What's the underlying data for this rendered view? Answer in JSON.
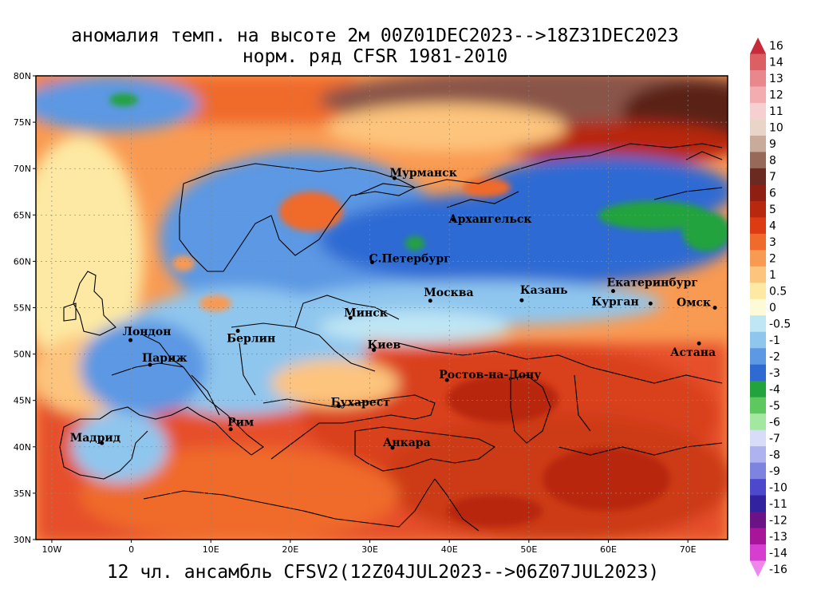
{
  "title_line1": "аномалия темп. на высоте 2м 00Z01DEC2023-->18Z31DEC2023",
  "title_line2": "норм. ряд CFSR 1981-2010",
  "footer": "12 чл. ансамбль CFSV2(12Z04JUL2023-->06Z07JUL2023)",
  "lat_ticks": [
    {
      "label": "80N",
      "v": 80
    },
    {
      "label": "75N",
      "v": 75
    },
    {
      "label": "70N",
      "v": 70
    },
    {
      "label": "65N",
      "v": 65
    },
    {
      "label": "60N",
      "v": 60
    },
    {
      "label": "55N",
      "v": 55
    },
    {
      "label": "50N",
      "v": 50
    },
    {
      "label": "45N",
      "v": 45
    },
    {
      "label": "40N",
      "v": 40
    },
    {
      "label": "35N",
      "v": 35
    },
    {
      "label": "30N",
      "v": 30
    }
  ],
  "lon_ticks": [
    {
      "label": "10W",
      "v": -10
    },
    {
      "label": "0",
      "v": 0
    },
    {
      "label": "10E",
      "v": 10
    },
    {
      "label": "20E",
      "v": 20
    },
    {
      "label": "30E",
      "v": 30
    },
    {
      "label": "40E",
      "v": 40
    },
    {
      "label": "50E",
      "v": 50
    },
    {
      "label": "60E",
      "v": 60
    },
    {
      "label": "70E",
      "v": 70
    }
  ],
  "cities": [
    {
      "name": "Мурманск",
      "lon": 33.1,
      "lat": 68.97
    },
    {
      "name": "Архангельск",
      "lon": 40.5,
      "lat": 64.5
    },
    {
      "name": "С.Петербург",
      "lon": 30.3,
      "lat": 59.9
    },
    {
      "name": "Москва",
      "lon": 37.6,
      "lat": 55.75
    },
    {
      "name": "Казань",
      "lon": 49.1,
      "lat": 55.8
    },
    {
      "name": "Екатеринбург",
      "lon": 60.6,
      "lat": 56.8
    },
    {
      "name": "Курган",
      "lon": 65.3,
      "lat": 55.45
    },
    {
      "name": "Омск",
      "lon": 73.4,
      "lat": 55.0
    },
    {
      "name": "Астана",
      "lon": 71.4,
      "lat": 51.15
    },
    {
      "name": "Минск",
      "lon": 27.55,
      "lat": 53.9
    },
    {
      "name": "Киев",
      "lon": 30.5,
      "lat": 50.45
    },
    {
      "name": "Берлин",
      "lon": 13.4,
      "lat": 52.5
    },
    {
      "name": "Лондон",
      "lon": -0.1,
      "lat": 51.5
    },
    {
      "name": "Париж",
      "lon": 2.35,
      "lat": 48.85
    },
    {
      "name": "Ростов-на-Дону",
      "lon": 39.7,
      "lat": 47.2
    },
    {
      "name": "Бухарест",
      "lon": 26.1,
      "lat": 44.4
    },
    {
      "name": "Рим",
      "lon": 12.5,
      "lat": 41.9
    },
    {
      "name": "Мадрид",
      "lon": -3.7,
      "lat": 40.4
    },
    {
      "name": "Анкара",
      "lon": 32.85,
      "lat": 39.9
    }
  ],
  "colorbar": [
    {
      "label": "16",
      "color": "#c72a3a"
    },
    {
      "label": "14",
      "color": "#dc5f64"
    },
    {
      "label": "13",
      "color": "#e8878c"
    },
    {
      "label": "12",
      "color": "#f3adb0"
    },
    {
      "label": "11",
      "color": "#f6d0d0"
    },
    {
      "label": "10",
      "color": "#e9d4c9"
    },
    {
      "label": "9",
      "color": "#c9ab9c"
    },
    {
      "label": "8",
      "color": "#966959"
    },
    {
      "label": "7",
      "color": "#6b2a20"
    },
    {
      "label": "6",
      "color": "#8e1f12"
    },
    {
      "label": "5",
      "color": "#b8280f"
    },
    {
      "label": "4",
      "color": "#dd3c12"
    },
    {
      "label": "3",
      "color": "#f06a2c"
    },
    {
      "label": "2",
      "color": "#f99a52"
    },
    {
      "label": "1",
      "color": "#fdc47d"
    },
    {
      "label": "0.5",
      "color": "#fde9a3"
    },
    {
      "label": "0",
      "color": "#fdfad8"
    },
    {
      "label": "-0.5",
      "color": "#bfe6f4"
    },
    {
      "label": "-1",
      "color": "#8fc6ee"
    },
    {
      "label": "-2",
      "color": "#5c98e3"
    },
    {
      "label": "-3",
      "color": "#2f6ad3"
    },
    {
      "label": "-4",
      "color": "#23a33d"
    },
    {
      "label": "-5",
      "color": "#5dc85e"
    },
    {
      "label": "-6",
      "color": "#a3e8a0"
    },
    {
      "label": "-7",
      "color": "#d9dcf8"
    },
    {
      "label": "-8",
      "color": "#aeb2ef"
    },
    {
      "label": "-9",
      "color": "#7f83e0"
    },
    {
      "label": "-10",
      "color": "#4d49cc"
    },
    {
      "label": "-11",
      "color": "#3322a0"
    },
    {
      "label": "-12",
      "color": "#6b1287"
    },
    {
      "label": "-13",
      "color": "#a8149a"
    },
    {
      "label": "-14",
      "color": "#d53ecf"
    },
    {
      "label": "-16",
      "color": "#ef86ec"
    }
  ]
}
